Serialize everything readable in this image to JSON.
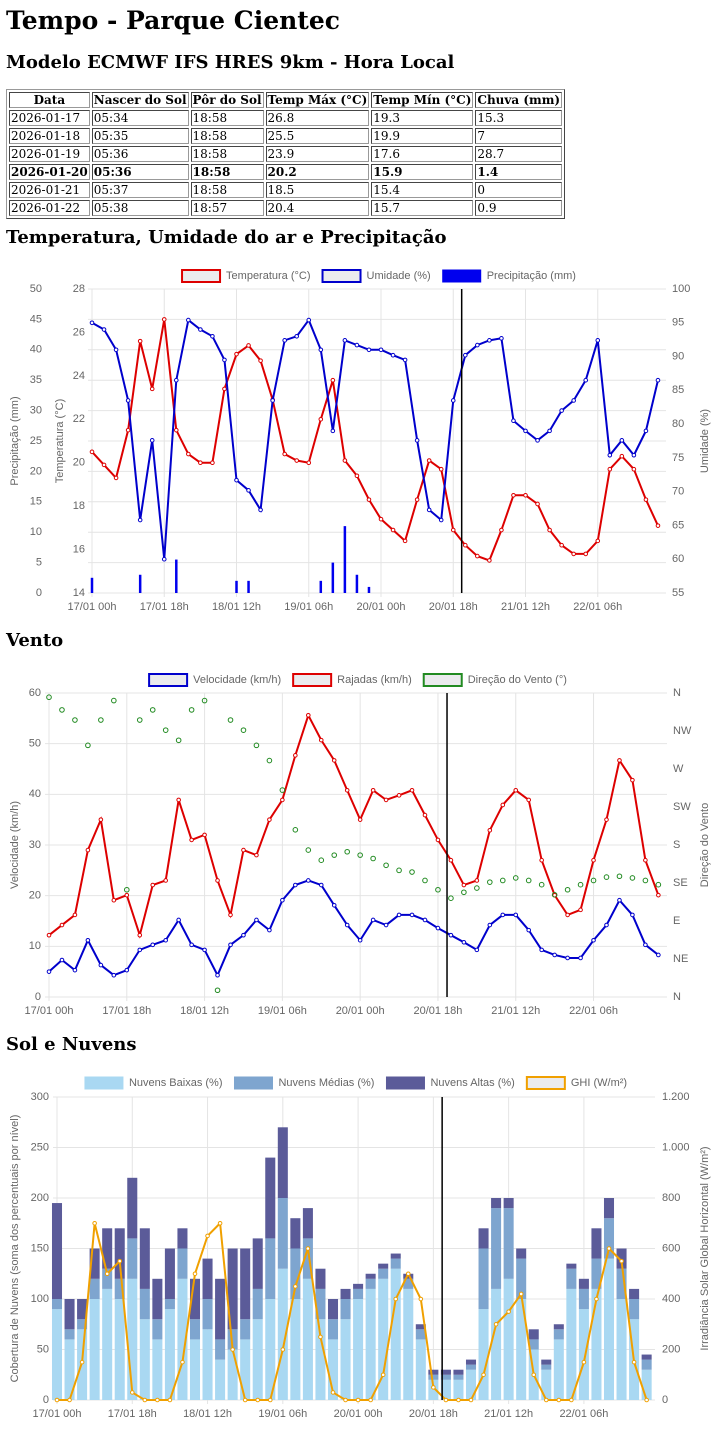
{
  "header": {
    "title": "Tempo - Parque Cientec",
    "subtitle": "Modelo ECMWF IFS HRES 9km - Hora Local"
  },
  "table": {
    "columns": [
      "Data",
      "Nascer do Sol",
      "Pôr do Sol",
      "Temp Máx (°C)",
      "Temp Mín (°C)",
      "Chuva (mm)"
    ],
    "rows": [
      [
        "2026-01-17",
        "05:34",
        "18:58",
        "26.8",
        "19.3",
        "15.3"
      ],
      [
        "2026-01-18",
        "05:35",
        "18:58",
        "25.5",
        "19.9",
        "7"
      ],
      [
        "2026-01-19",
        "05:36",
        "18:58",
        "23.9",
        "17.6",
        "28.7"
      ],
      [
        "2026-01-20",
        "05:36",
        "18:58",
        "20.2",
        "15.9",
        "1.4"
      ],
      [
        "2026-01-21",
        "05:37",
        "18:58",
        "18.5",
        "15.4",
        "0"
      ],
      [
        "2026-01-22",
        "05:38",
        "18:57",
        "20.4",
        "15.7",
        "0.9"
      ]
    ],
    "bold_row": 3
  },
  "chart_data": [
    {
      "type": "line",
      "title": "Temperatura, Umidade do ar e Precipitação",
      "x": [
        "17/01 00h",
        null,
        null,
        null,
        null,
        null,
        "17/01 18h",
        null,
        null,
        null,
        null,
        null,
        "18/01 12h",
        null,
        null,
        null,
        null,
        null,
        "19/01 06h",
        null,
        null,
        null,
        null,
        null,
        "20/01 00h",
        null,
        null,
        null,
        null,
        null,
        "20/01 18h",
        null,
        null,
        null,
        null,
        null,
        "21/01 12h",
        null,
        null,
        null,
        null,
        null,
        "22/01 06h",
        null,
        null,
        null,
        null,
        null
      ],
      "vline_at": 30.7,
      "ylabel": "Temperatura (°C)",
      "ylim": [
        14,
        28
      ],
      "yticks": [
        14,
        16,
        18,
        20,
        22,
        24,
        26,
        28
      ],
      "y2label": "Umidade (%)",
      "y2lim": [
        55,
        100
      ],
      "y2ticks": [
        55,
        60,
        65,
        70,
        75,
        80,
        85,
        90,
        95,
        100
      ],
      "y3label": "Precipitação (mm)",
      "y3lim": [
        0,
        50
      ],
      "y3ticks": [
        0,
        5,
        10,
        15,
        20,
        25,
        30,
        35,
        40,
        45,
        50
      ],
      "grid": "y3",
      "series": [
        {
          "name": "Temperatura (°C)",
          "type": "line",
          "axis": "y",
          "color": "#dd0000",
          "values": [
            20.5,
            19.9,
            19.3,
            21.5,
            25.6,
            23.4,
            26.6,
            21.5,
            20.4,
            20.0,
            20.0,
            23.4,
            25.0,
            25.4,
            24.7,
            22.9,
            20.4,
            20.1,
            20.0,
            22.0,
            23.8,
            20.1,
            19.4,
            18.3,
            17.4,
            16.9,
            16.4,
            18.3,
            20.1,
            19.7,
            16.9,
            16.2,
            15.7,
            15.5,
            16.9,
            18.5,
            18.5,
            18.1,
            16.9,
            16.2,
            15.8,
            15.8,
            16.4,
            19.7,
            20.3,
            19.7,
            18.3,
            17.1
          ]
        },
        {
          "name": "Umidade (%)",
          "type": "line",
          "axis": "y2",
          "color": "#0000cc",
          "values": [
            95,
            94,
            91,
            83.5,
            65.8,
            77.6,
            60,
            86.5,
            95.4,
            94,
            93,
            89.5,
            71.7,
            70.2,
            67.3,
            83.5,
            92.4,
            93,
            95.4,
            91,
            79,
            92.4,
            91.7,
            91,
            91,
            90.2,
            89.5,
            77.6,
            67.3,
            65.8,
            83.5,
            90.2,
            91.7,
            92.4,
            92.7,
            80.5,
            79,
            77.6,
            79,
            82,
            83.5,
            86.5,
            92.4,
            75.4,
            77.6,
            75.4,
            79,
            86.5
          ]
        },
        {
          "name": "Precipitação (mm)",
          "type": "bar",
          "axis": "y3",
          "color": "#0000ee",
          "values": [
            2.5,
            0,
            0,
            0,
            3,
            0,
            0,
            5.5,
            0,
            0,
            0,
            0,
            2,
            2,
            0,
            0,
            0,
            0,
            0,
            2,
            5,
            11,
            3,
            1,
            0,
            0,
            0,
            0,
            0,
            0,
            0,
            0,
            0,
            0,
            0,
            0,
            0,
            0,
            0,
            0,
            0,
            0,
            0,
            0,
            0,
            0,
            0,
            0
          ]
        }
      ]
    },
    {
      "type": "line",
      "title": "Vento",
      "x": [
        "17/01 00h",
        null,
        null,
        null,
        null,
        null,
        "17/01 18h",
        null,
        null,
        null,
        null,
        null,
        "18/01 12h",
        null,
        null,
        null,
        null,
        null,
        "19/01 06h",
        null,
        null,
        null,
        null,
        null,
        "20/01 00h",
        null,
        null,
        null,
        null,
        null,
        "20/01 18h",
        null,
        null,
        null,
        null,
        null,
        "21/01 12h",
        null,
        null,
        null,
        null,
        null,
        "22/01 06h",
        null,
        null,
        null,
        null,
        null
      ],
      "vline_at": 30.7,
      "ylabel": "Velocidade (km/h)",
      "ylim": [
        0,
        60
      ],
      "yticks": [
        0,
        10,
        20,
        30,
        40,
        50,
        60
      ],
      "y2label": "Direção do Vento",
      "y2lim": [
        0,
        360
      ],
      "y2ticks": [
        {
          "value": 0,
          "label": "N"
        },
        {
          "value": 45,
          "label": "NE"
        },
        {
          "value": 90,
          "label": "E"
        },
        {
          "value": 135,
          "label": "SE"
        },
        {
          "value": 180,
          "label": "S"
        },
        {
          "value": 225,
          "label": "SW"
        },
        {
          "value": 270,
          "label": "W"
        },
        {
          "value": 315,
          "label": "NW"
        },
        {
          "value": 360,
          "label": "N"
        }
      ],
      "grid": "y",
      "series": [
        {
          "name": "Velocidade (km/h)",
          "type": "line",
          "axis": "y",
          "color": "#0000cc",
          "values": [
            5,
            7.3,
            5.3,
            11.2,
            6.3,
            4.3,
            5.3,
            9.3,
            10.3,
            11.2,
            15.2,
            10.3,
            9.3,
            4.3,
            10.3,
            12.2,
            15.2,
            13.2,
            19.1,
            22.1,
            23,
            22.1,
            18.1,
            14.2,
            11.2,
            15.2,
            14.2,
            16.2,
            16.2,
            15.2,
            13.6,
            12.2,
            10.8,
            9.3,
            14.2,
            16.2,
            16.2,
            13.2,
            9.3,
            8.3,
            7.7,
            7.7,
            11.2,
            14.2,
            19.1,
            16.2,
            10.3,
            8.3
          ]
        },
        {
          "name": "Rajadas (km/h)",
          "type": "line",
          "axis": "y",
          "color": "#dd0000",
          "values": [
            12.2,
            14.2,
            16.2,
            29,
            35,
            19.1,
            20.1,
            12.2,
            22.1,
            23,
            38.9,
            31,
            32,
            23,
            16.2,
            29,
            28,
            35,
            38.9,
            47.7,
            55.6,
            50.7,
            46.7,
            40.8,
            35,
            40.8,
            38.9,
            39.8,
            40.8,
            35.9,
            31,
            27,
            22.1,
            23,
            32.9,
            37.9,
            40.8,
            38.9,
            27,
            20.1,
            16.2,
            17.2,
            27,
            35,
            46.7,
            42.8,
            27,
            20.1
          ]
        },
        {
          "name": "Direção do Vento (°)",
          "type": "scatter",
          "axis": "y2",
          "color": "#228b22",
          "values": [
            355,
            340,
            328,
            298,
            328,
            351,
            127,
            328,
            340,
            316,
            304,
            340,
            351,
            8,
            328,
            316,
            298,
            280,
            245,
            198,
            174,
            162,
            168,
            172,
            168,
            164,
            156,
            150,
            148,
            138,
            127,
            117,
            124,
            129,
            136,
            138,
            141,
            138,
            133,
            121,
            127,
            133,
            138,
            142,
            143,
            141,
            138,
            133
          ]
        }
      ]
    },
    {
      "type": "bar",
      "title": "Sol e Nuvens",
      "stacked": true,
      "x": [
        "17/01 00h",
        null,
        null,
        null,
        null,
        null,
        "17/01 18h",
        null,
        null,
        null,
        null,
        null,
        "18/01 12h",
        null,
        null,
        null,
        null,
        null,
        "19/01 06h",
        null,
        null,
        null,
        null,
        null,
        "20/01 00h",
        null,
        null,
        null,
        null,
        null,
        "20/01 18h",
        null,
        null,
        null,
        null,
        null,
        "21/01 12h",
        null,
        null,
        null,
        null,
        null,
        "22/01 06h",
        null,
        null,
        null,
        null,
        null
      ],
      "vline_at": 30.7,
      "ylabel": "Cobertura de Nuvens (soma dos percentuais por nível)",
      "ylim": [
        0,
        300
      ],
      "yticks": [
        0,
        50,
        100,
        150,
        200,
        250,
        300
      ],
      "y2label": "Irradiância Solar Global Horizontal (W/m²)",
      "y2lim": [
        0,
        1200
      ],
      "y2ticks": [
        0,
        200,
        400,
        600,
        800,
        {
          "value": 1000,
          "label": "1.000"
        },
        {
          "value": 1200,
          "label": "1.200"
        }
      ],
      "grid": "y",
      "series": [
        {
          "name": "Nuvens Baixas (%)",
          "type": "bar",
          "axis": "y",
          "color": "#a9d8f2",
          "values": [
            90,
            60,
            70,
            100,
            110,
            100,
            120,
            80,
            60,
            90,
            120,
            60,
            70,
            40,
            50,
            60,
            80,
            100,
            130,
            100,
            120,
            80,
            60,
            80,
            100,
            110,
            120,
            130,
            110,
            60,
            20,
            20,
            20,
            30,
            90,
            110,
            120,
            100,
            50,
            30,
            60,
            110,
            90,
            110,
            140,
            100,
            80,
            30
          ]
        },
        {
          "name": "Nuvens Médias (%)",
          "type": "bar",
          "axis": "y",
          "color": "#7ea5cf",
          "values": [
            10,
            10,
            10,
            20,
            20,
            20,
            40,
            30,
            20,
            10,
            30,
            20,
            30,
            20,
            20,
            20,
            30,
            60,
            70,
            50,
            40,
            30,
            20,
            20,
            10,
            10,
            10,
            10,
            10,
            10,
            5,
            5,
            5,
            5,
            60,
            80,
            70,
            40,
            10,
            5,
            10,
            20,
            20,
            30,
            40,
            30,
            20,
            10
          ]
        },
        {
          "name": "Nuvens Altas (%)",
          "type": "bar",
          "axis": "y",
          "color": "#5b5b99",
          "values": [
            95,
            30,
            20,
            30,
            40,
            50,
            60,
            60,
            40,
            50,
            20,
            40,
            40,
            60,
            80,
            70,
            50,
            80,
            70,
            30,
            30,
            20,
            20,
            10,
            5,
            5,
            5,
            5,
            5,
            5,
            5,
            5,
            5,
            5,
            20,
            10,
            10,
            10,
            10,
            5,
            5,
            5,
            10,
            30,
            20,
            20,
            10,
            5
          ]
        },
        {
          "name": "GHI (W/m²)",
          "type": "line",
          "axis": "y2",
          "color": "#f0a000",
          "values": [
            0,
            0,
            150,
            700,
            500,
            550,
            30,
            0,
            0,
            0,
            150,
            500,
            650,
            700,
            200,
            0,
            0,
            0,
            200,
            450,
            600,
            250,
            30,
            0,
            0,
            0,
            100,
            400,
            500,
            400,
            50,
            0,
            0,
            0,
            100,
            300,
            350,
            420,
            100,
            0,
            0,
            0,
            150,
            400,
            600,
            550,
            150,
            0
          ]
        }
      ]
    }
  ]
}
